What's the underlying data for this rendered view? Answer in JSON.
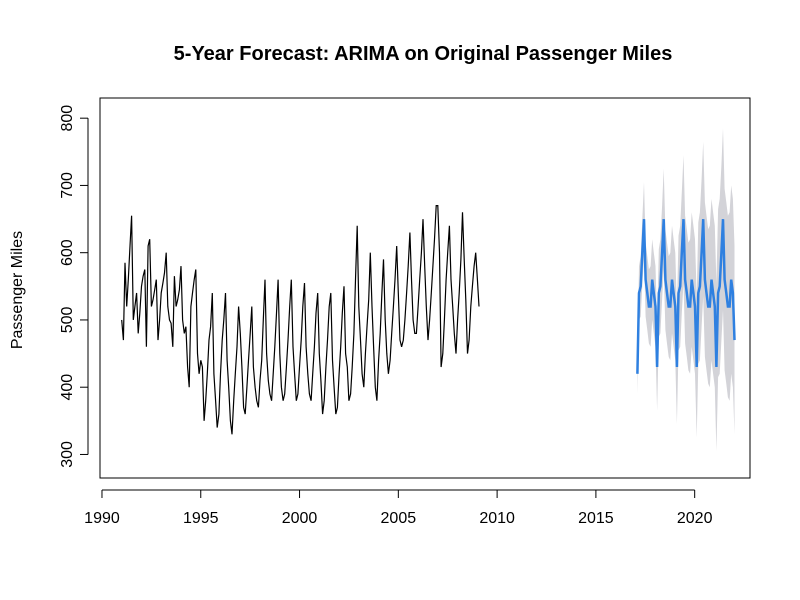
{
  "chart_data": {
    "type": "line",
    "title": "5-Year Forecast: ARIMA on Original Passenger Miles",
    "xlabel": "",
    "ylabel": "Passenger Miles",
    "xlim": [
      1989.9,
      2022.8
    ],
    "ylim": [
      265,
      830
    ],
    "x_ticks": [
      1990,
      1995,
      2000,
      2005,
      2010,
      2015,
      2020
    ],
    "y_ticks": [
      300,
      400,
      500,
      600,
      700,
      800
    ],
    "grid": false,
    "legend": "none",
    "colors": {
      "history": "#000000",
      "forecast": "#2f80e0",
      "band": "#d3d3d8"
    },
    "history": {
      "start": 1991.0,
      "step": 0.083333,
      "values": [
        500,
        470,
        585,
        520,
        560,
        610,
        655,
        500,
        520,
        540,
        480,
        510,
        550,
        565,
        575,
        460,
        610,
        620,
        520,
        530,
        545,
        560,
        470,
        500,
        540,
        555,
        570,
        600,
        520,
        500,
        495,
        460,
        565,
        520,
        530,
        545,
        580,
        500,
        480,
        490,
        430,
        400,
        520,
        540,
        560,
        575,
        450,
        420,
        440,
        430,
        350,
        380,
        420,
        470,
        490,
        540,
        420,
        380,
        340,
        360,
        420,
        470,
        500,
        540,
        440,
        400,
        350,
        330,
        380,
        420,
        460,
        520,
        480,
        430,
        370,
        360,
        400,
        440,
        480,
        520,
        430,
        400,
        380,
        370,
        410,
        440,
        500,
        560,
        450,
        410,
        390,
        380,
        420,
        460,
        510,
        560,
        450,
        400,
        380,
        390,
        430,
        470,
        520,
        560,
        460,
        420,
        380,
        390,
        430,
        470,
        520,
        555,
        460,
        420,
        390,
        380,
        420,
        460,
        510,
        540,
        450,
        410,
        360,
        380,
        430,
        470,
        520,
        540,
        440,
        400,
        360,
        370,
        420,
        460,
        510,
        550,
        450,
        430,
        380,
        390,
        430,
        480,
        560,
        640,
        520,
        470,
        420,
        400,
        450,
        490,
        530,
        600,
        520,
        460,
        400,
        380,
        440,
        480,
        540,
        590,
        500,
        450,
        420,
        440,
        480,
        520,
        560,
        610,
        540,
        470,
        460,
        470,
        500,
        540,
        580,
        630,
        560,
        500,
        480,
        480,
        520,
        560,
        600,
        650,
        580,
        520,
        470,
        500,
        540,
        580,
        620,
        670,
        670,
        600,
        430,
        450,
        500,
        560,
        600,
        640,
        560,
        520,
        480,
        450,
        500,
        540,
        590,
        660,
        590,
        530,
        450,
        470,
        520,
        550,
        580,
        600,
        560,
        520
      ]
    },
    "forecast": {
      "start": 2017.1,
      "step": 0.083333,
      "values": [
        420,
        540,
        550,
        600,
        650,
        560,
        540,
        520,
        520,
        560,
        540,
        520,
        430,
        540,
        550,
        600,
        650,
        560,
        540,
        520,
        520,
        560,
        540,
        520,
        430,
        540,
        550,
        600,
        650,
        560,
        540,
        520,
        520,
        560,
        540,
        520,
        430,
        540,
        550,
        600,
        650,
        560,
        540,
        520,
        520,
        560,
        540,
        520,
        430,
        540,
        550,
        600,
        650,
        560,
        540,
        520,
        520,
        560,
        540,
        470
      ],
      "band_width": [
        30,
        40,
        45,
        50,
        55,
        55,
        55,
        55,
        60,
        60,
        60,
        60,
        65,
        65,
        70,
        70,
        75,
        75,
        75,
        75,
        80,
        80,
        80,
        80,
        85,
        85,
        90,
        90,
        95,
        95,
        95,
        95,
        100,
        100,
        100,
        100,
        105,
        105,
        110,
        110,
        115,
        115,
        115,
        115,
        120,
        120,
        120,
        120,
        125,
        125,
        130,
        130,
        135,
        135,
        135,
        135,
        140,
        140,
        140,
        140
      ]
    }
  }
}
